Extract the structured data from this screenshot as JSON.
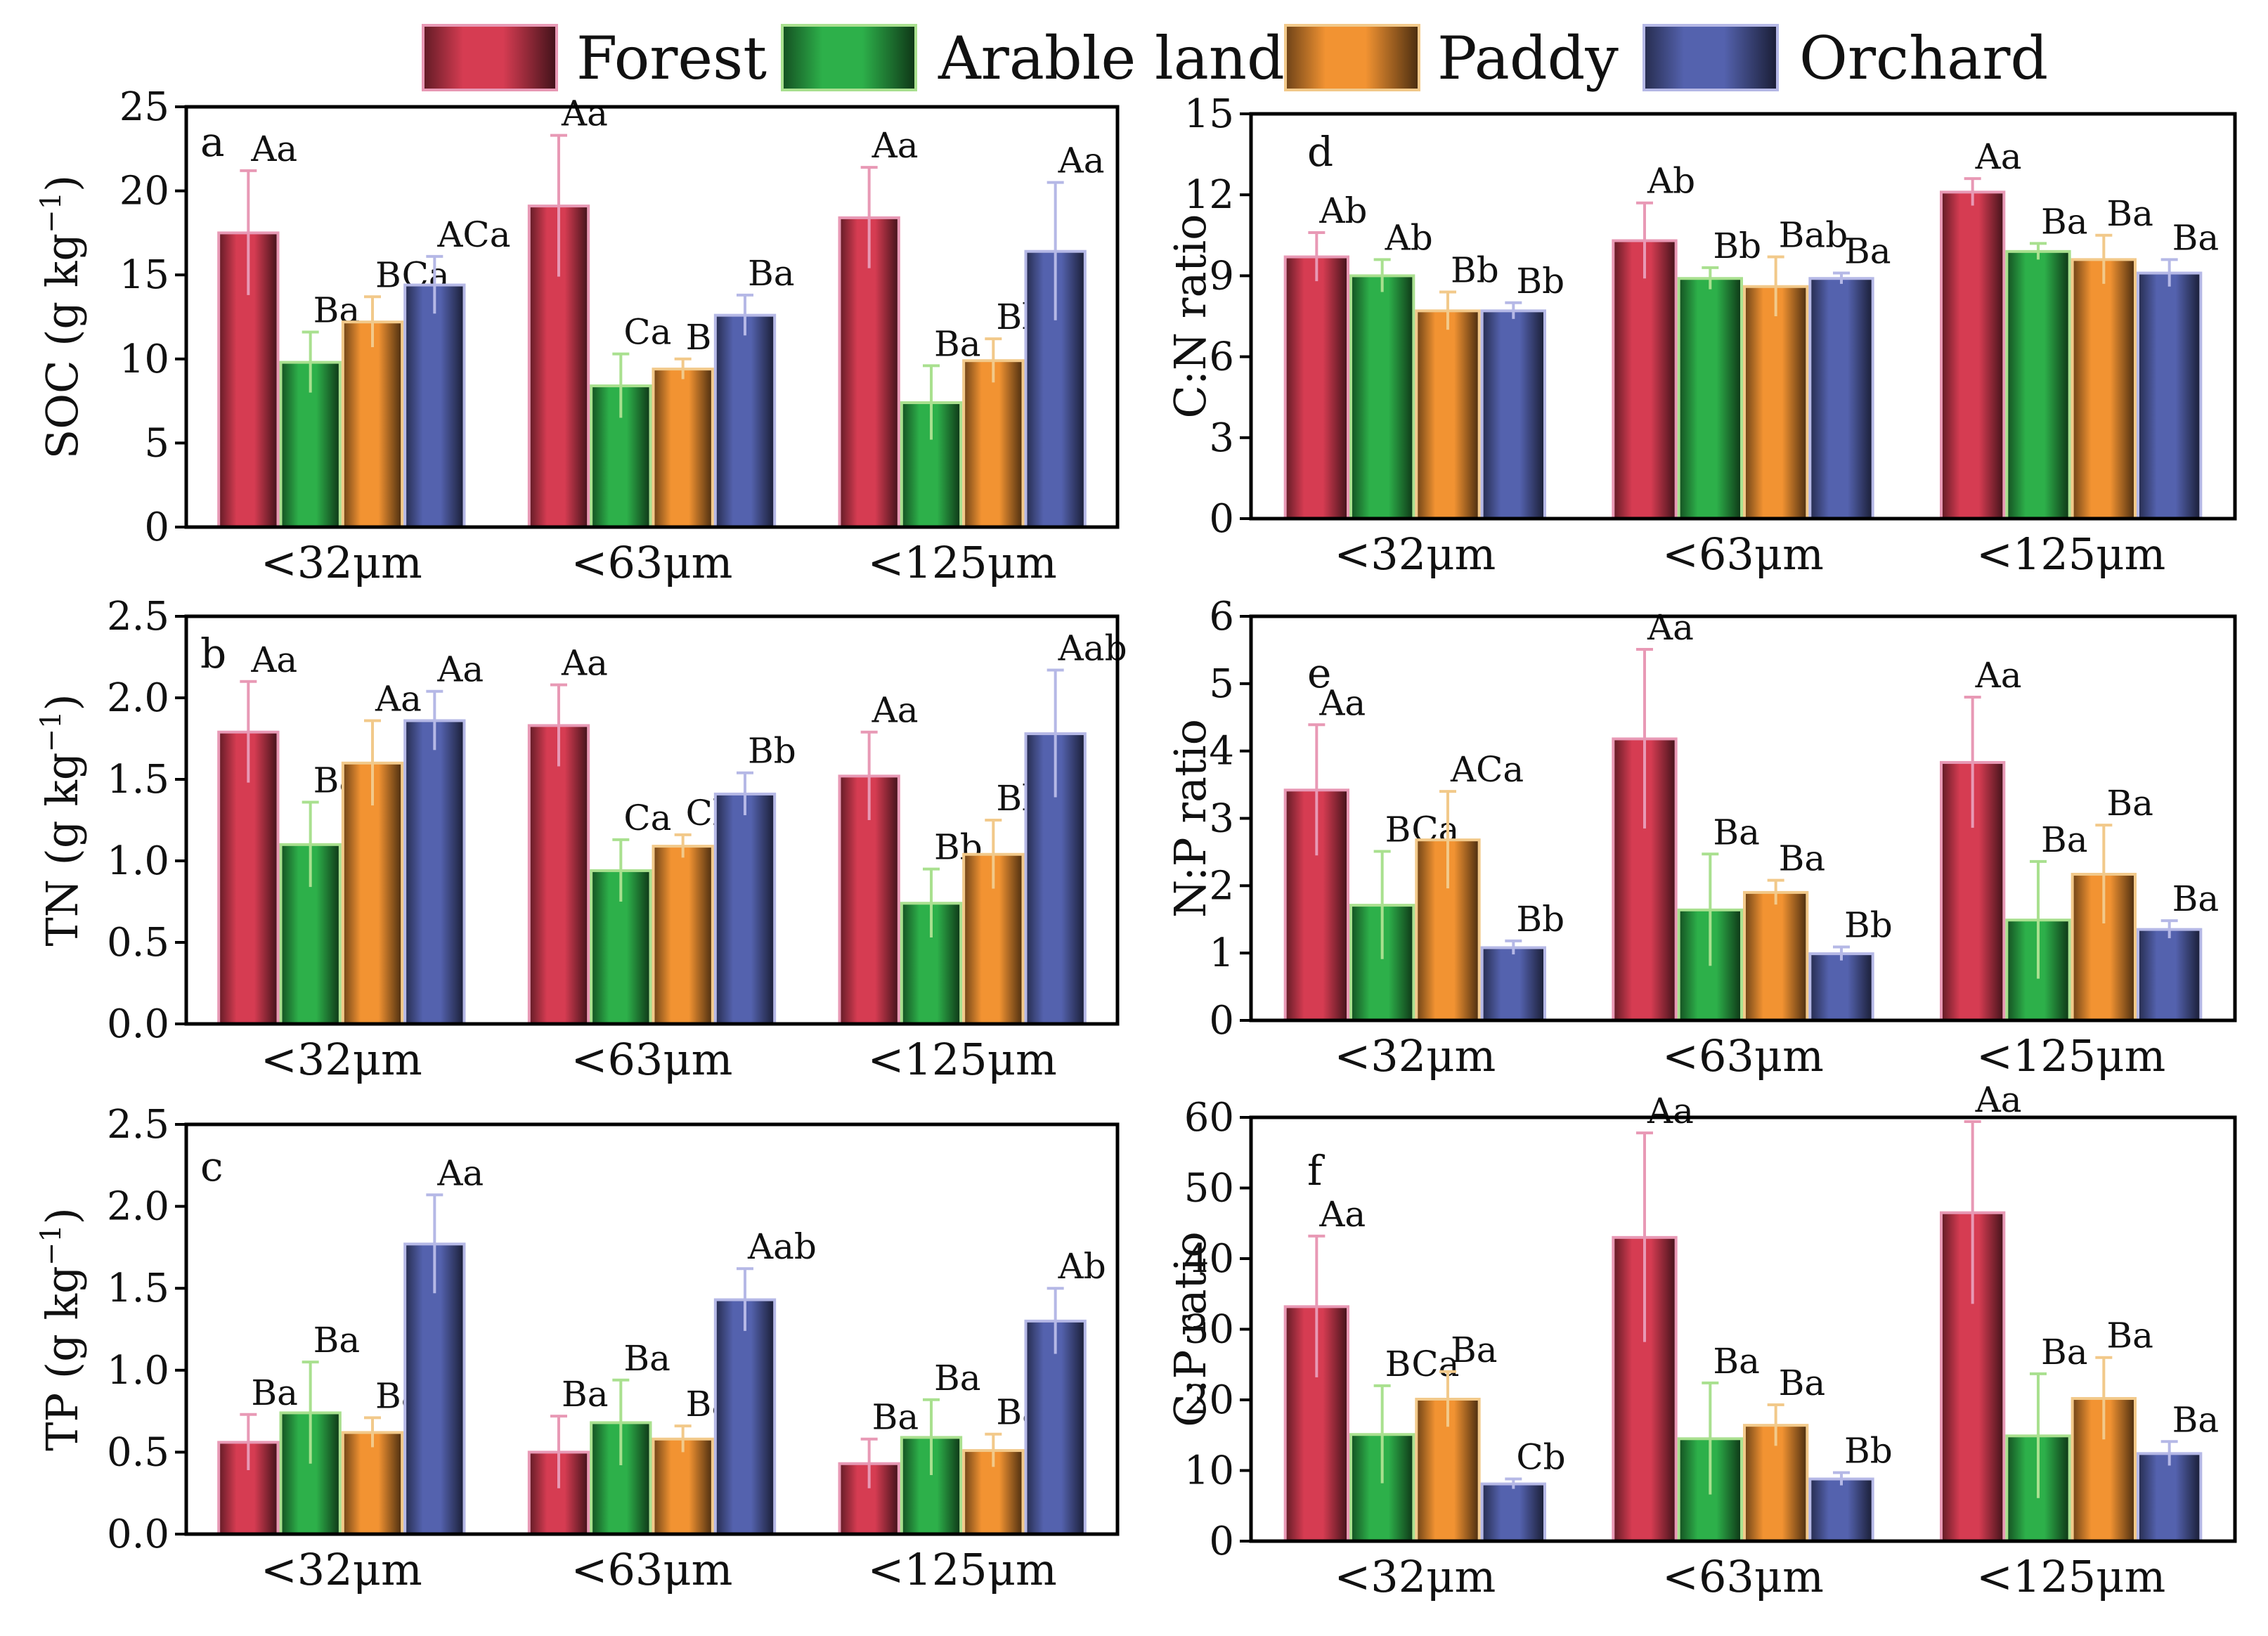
{
  "legend": {
    "items": [
      {
        "name": "Forest",
        "color": "#d63c52",
        "edge": "#e899b5"
      },
      {
        "name": "Arable land",
        "color": "#2db04a",
        "edge": "#a9e08f"
      },
      {
        "name": "Paddy",
        "color": "#f29332",
        "edge": "#f2c98a"
      },
      {
        "name": "Orchard",
        "color": "#5462ae",
        "edge": "#b5b8e6"
      }
    ]
  },
  "chart_data": [
    {
      "id": "a",
      "panel_letter": "a",
      "type": "bar",
      "ylabel": "SOC (g kg",
      "ylabel_sup": "−1",
      "ylabel_tail": ")",
      "ylim": [
        0,
        25
      ],
      "yticks": [
        "0",
        "5",
        "10",
        "15",
        "20",
        "25"
      ],
      "categories": [
        "<32μm",
        "<63μm",
        "<125μm"
      ],
      "series": [
        {
          "name": "Forest",
          "values": [
            17.5,
            19.1,
            18.4
          ],
          "errors": [
            3.7,
            4.2,
            3.0
          ],
          "labels": [
            "Aa",
            "Aa",
            "Aa"
          ]
        },
        {
          "name": "Arable land",
          "values": [
            9.8,
            8.4,
            7.4
          ],
          "errors": [
            1.8,
            1.9,
            2.2
          ],
          "labels": [
            "Ba",
            "Ca",
            "Ba"
          ]
        },
        {
          "name": "Paddy",
          "values": [
            12.2,
            9.4,
            9.9
          ],
          "errors": [
            1.5,
            0.6,
            1.3
          ],
          "labels": [
            "BCa",
            "BCb",
            "Bb"
          ]
        },
        {
          "name": "Orchard",
          "values": [
            14.4,
            12.6,
            16.4
          ],
          "errors": [
            1.7,
            1.2,
            4.1
          ],
          "labels": [
            "ACa",
            "Ba",
            "Aa"
          ]
        }
      ]
    },
    {
      "id": "b",
      "panel_letter": "b",
      "type": "bar",
      "ylabel": "TN (g kg",
      "ylabel_sup": "−1",
      "ylabel_tail": ")",
      "ylim": [
        0,
        2.5
      ],
      "yticks": [
        "0.0",
        "0.5",
        "1.0",
        "1.5",
        "2.0",
        "2.5"
      ],
      "categories": [
        "<32μm",
        "<63μm",
        "<125μm"
      ],
      "series": [
        {
          "name": "Forest",
          "values": [
            1.79,
            1.83,
            1.52
          ],
          "errors": [
            0.31,
            0.25,
            0.27
          ],
          "labels": [
            "Aa",
            "Aa",
            "Aa"
          ]
        },
        {
          "name": "Arable land",
          "values": [
            1.1,
            0.94,
            0.74
          ],
          "errors": [
            0.26,
            0.19,
            0.21
          ],
          "labels": [
            "Ba",
            "Ca",
            "Bb"
          ]
        },
        {
          "name": "Paddy",
          "values": [
            1.6,
            1.09,
            1.04
          ],
          "errors": [
            0.26,
            0.07,
            0.21
          ],
          "labels": [
            "Aa",
            "Cb",
            "Bb"
          ]
        },
        {
          "name": "Orchard",
          "values": [
            1.86,
            1.41,
            1.78
          ],
          "errors": [
            0.18,
            0.13,
            0.39
          ],
          "labels": [
            "Aa",
            "Bb",
            "Aab"
          ]
        }
      ]
    },
    {
      "id": "c",
      "panel_letter": "c",
      "type": "bar",
      "ylabel": "TP (g kg",
      "ylabel_sup": "−1",
      "ylabel_tail": ")",
      "ylim": [
        0,
        2.5
      ],
      "yticks": [
        "0.0",
        "0.5",
        "1.0",
        "1.5",
        "2.0",
        "2.5"
      ],
      "categories": [
        "<32μm",
        "<63μm",
        "<125μm"
      ],
      "series": [
        {
          "name": "Forest",
          "values": [
            0.56,
            0.5,
            0.43
          ],
          "errors": [
            0.17,
            0.22,
            0.15
          ],
          "labels": [
            "Ba",
            "Ba",
            "Ba"
          ]
        },
        {
          "name": "Arable land",
          "values": [
            0.74,
            0.68,
            0.59
          ],
          "errors": [
            0.31,
            0.26,
            0.23
          ],
          "labels": [
            "Ba",
            "Ba",
            "Ba"
          ]
        },
        {
          "name": "Paddy",
          "values": [
            0.62,
            0.58,
            0.51
          ],
          "errors": [
            0.09,
            0.08,
            0.1
          ],
          "labels": [
            "Ba",
            "Ba",
            "Ba"
          ]
        },
        {
          "name": "Orchard",
          "values": [
            1.77,
            1.43,
            1.3
          ],
          "errors": [
            0.3,
            0.19,
            0.2
          ],
          "labels": [
            "Aa",
            "Aab",
            "Ab"
          ]
        }
      ]
    },
    {
      "id": "d",
      "panel_letter": "d",
      "type": "bar",
      "ylabel": "C:N ratio",
      "ylabel_sup": "",
      "ylabel_tail": "",
      "ylim": [
        0,
        15
      ],
      "yticks": [
        "0",
        "3",
        "6",
        "9",
        "12",
        "15"
      ],
      "categories": [
        "<32μm",
        "<63μm",
        "<125μm"
      ],
      "series": [
        {
          "name": "Forest",
          "values": [
            9.7,
            10.3,
            12.1
          ],
          "errors": [
            0.9,
            1.4,
            0.5
          ],
          "labels": [
            "Ab",
            "Ab",
            "Aa"
          ]
        },
        {
          "name": "Arable land",
          "values": [
            9.0,
            8.9,
            9.9
          ],
          "errors": [
            0.6,
            0.4,
            0.3
          ],
          "labels": [
            "Ab",
            "Bb",
            "Ba"
          ]
        },
        {
          "name": "Paddy",
          "values": [
            7.7,
            8.6,
            9.6
          ],
          "errors": [
            0.7,
            1.1,
            0.9
          ],
          "labels": [
            "Bb",
            "Bab",
            "Ba"
          ]
        },
        {
          "name": "Orchard",
          "values": [
            7.7,
            8.9,
            9.1
          ],
          "errors": [
            0.3,
            0.2,
            0.5
          ],
          "labels": [
            "Bb",
            "Ba",
            "Ba"
          ]
        }
      ]
    },
    {
      "id": "e",
      "panel_letter": "e",
      "type": "bar",
      "ylabel": "N:P ratio",
      "ylabel_sup": "",
      "ylabel_tail": "",
      "ylim": [
        0,
        6
      ],
      "yticks": [
        "0",
        "1",
        "2",
        "3",
        "4",
        "5",
        "6"
      ],
      "categories": [
        "<32μm",
        "<63μm",
        "<125μm"
      ],
      "series": [
        {
          "name": "Forest",
          "values": [
            3.42,
            4.18,
            3.83
          ],
          "errors": [
            0.97,
            1.33,
            0.97
          ],
          "labels": [
            "Aa",
            "Aa",
            "Aa"
          ]
        },
        {
          "name": "Arable land",
          "values": [
            1.71,
            1.64,
            1.49
          ],
          "errors": [
            0.8,
            0.83,
            0.87
          ],
          "labels": [
            "BCa",
            "Ba",
            "Ba"
          ]
        },
        {
          "name": "Paddy",
          "values": [
            2.68,
            1.9,
            2.17
          ],
          "errors": [
            0.72,
            0.18,
            0.73
          ],
          "labels": [
            "ACa",
            "Ba",
            "Ba"
          ]
        },
        {
          "name": "Orchard",
          "values": [
            1.08,
            0.99,
            1.35
          ],
          "errors": [
            0.1,
            0.1,
            0.13
          ],
          "labels": [
            "Bb",
            "Bb",
            "Ba"
          ]
        }
      ]
    },
    {
      "id": "f",
      "panel_letter": "f",
      "type": "bar",
      "ylabel": "C:P ratio",
      "ylabel_sup": "",
      "ylabel_tail": "",
      "ylim": [
        0,
        60
      ],
      "yticks": [
        "0",
        "10",
        "20",
        "30",
        "40",
        "50",
        "60"
      ],
      "categories": [
        "<32μm",
        "<63μm",
        "<125μm"
      ],
      "series": [
        {
          "name": "Forest",
          "values": [
            33.2,
            43.0,
            46.5
          ],
          "errors": [
            10.0,
            14.8,
            12.9
          ],
          "labels": [
            "Aa",
            "Aa",
            "Aa"
          ]
        },
        {
          "name": "Arable land",
          "values": [
            15.1,
            14.5,
            14.9
          ],
          "errors": [
            6.9,
            7.9,
            8.8
          ],
          "labels": [
            "BCa",
            "Ba",
            "Ba"
          ]
        },
        {
          "name": "Paddy",
          "values": [
            20.1,
            16.4,
            20.2
          ],
          "errors": [
            3.9,
            2.9,
            5.8
          ],
          "labels": [
            "Ba",
            "Ba",
            "Ba"
          ]
        },
        {
          "name": "Orchard",
          "values": [
            8.1,
            8.8,
            12.4
          ],
          "errors": [
            0.7,
            0.9,
            1.7
          ],
          "labels": [
            "Cb",
            "Bb",
            "Ba"
          ]
        }
      ]
    }
  ]
}
